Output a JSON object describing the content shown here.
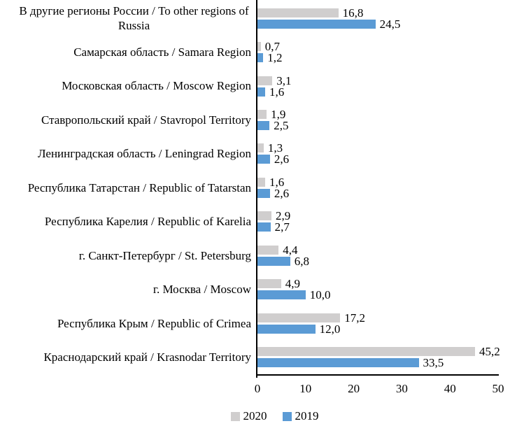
{
  "chart_data": {
    "type": "bar",
    "orientation": "horizontal",
    "title": "",
    "xlabel": "",
    "ylabel": "",
    "grid": false,
    "axis_color": "#000000",
    "xlim": [
      0,
      50
    ],
    "x_ticks": [
      "0",
      "10",
      "20",
      "30",
      "40",
      "50"
    ],
    "decimal_separator": ",",
    "categories": [
      "В другие регионы России / To other regions of Russia",
      "Самарская область / Samara Region",
      "Московская область / Moscow Region",
      "Ставропольский край / Stavropol Territory",
      "Ленинградская область / Leningrad Region",
      "Республика Татарстан / Republic of Tatarstan",
      "Республика Карелия / Republic of Karelia",
      "г. Санкт-Петербург / St. Petersburg",
      "г. Москва / Moscow",
      "Республика Крым / Republic of Crimea",
      "Краснодарский край / Krasnodar Territory"
    ],
    "series": [
      {
        "name": "2020",
        "color": "#D0CECE",
        "values": [
          16.8,
          0.7,
          3.1,
          1.9,
          1.3,
          1.6,
          2.9,
          4.4,
          4.9,
          17.2,
          45.2
        ],
        "labels": [
          "16,8",
          "0,7",
          "3,1",
          "1,9",
          "1,3",
          "1,6",
          "2,9",
          "4,4",
          "4,9",
          "17,2",
          "45,2"
        ]
      },
      {
        "name": "2019",
        "color": "#5B9BD5",
        "values": [
          24.5,
          1.2,
          1.6,
          2.5,
          2.6,
          2.6,
          2.7,
          6.8,
          10.0,
          12.0,
          33.5
        ],
        "labels": [
          "24,5",
          "1,2",
          "1,6",
          "2,5",
          "2,6",
          "2,6",
          "2,7",
          "6,8",
          "10,0",
          "12,0",
          "33,5"
        ]
      }
    ],
    "legend": [
      {
        "label": "2020",
        "color": "#D0CECE"
      },
      {
        "label": "2019",
        "color": "#5B9BD5"
      }
    ],
    "legend_position": "bottom"
  }
}
